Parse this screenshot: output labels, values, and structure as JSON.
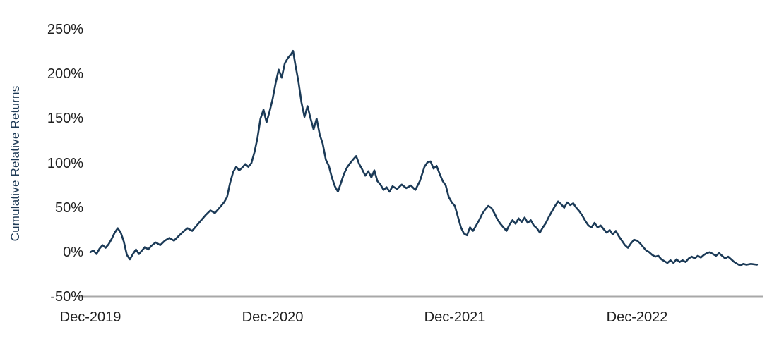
{
  "chart_data": {
    "type": "line",
    "title": "",
    "xlabel": "",
    "ylabel": "Cumulative Relative Returns",
    "x_unit": "months since Dec-2019",
    "xlim": [
      0,
      44
    ],
    "ylim": [
      -50,
      250
    ],
    "grid": false,
    "legend_position": "none",
    "line_color": "#1b3a57",
    "axis_color": "#a8a8a8",
    "tick_text_color": "#1f1f1f",
    "y_ticks": [
      {
        "value": 250,
        "label": "250%"
      },
      {
        "value": 200,
        "label": "200%"
      },
      {
        "value": 150,
        "label": "150%"
      },
      {
        "value": 100,
        "label": "100%"
      },
      {
        "value": 50,
        "label": "50%"
      },
      {
        "value": 0,
        "label": "0%"
      },
      {
        "value": -50,
        "label": "-50%"
      }
    ],
    "x_ticks": [
      {
        "month": 0,
        "label": "Dec-2019"
      },
      {
        "month": 12,
        "label": "Dec-2020"
      },
      {
        "month": 24,
        "label": "Dec-2021"
      },
      {
        "month": 36,
        "label": "Dec-2022"
      }
    ],
    "series": [
      {
        "name": "Cumulative Relative Returns",
        "points": [
          [
            0,
            0
          ],
          [
            0.2,
            2
          ],
          [
            0.4,
            -2
          ],
          [
            0.6,
            4
          ],
          [
            0.8,
            8
          ],
          [
            1.0,
            5
          ],
          [
            1.2,
            9
          ],
          [
            1.4,
            15
          ],
          [
            1.6,
            22
          ],
          [
            1.8,
            27
          ],
          [
            2.0,
            22
          ],
          [
            2.2,
            12
          ],
          [
            2.4,
            -3
          ],
          [
            2.6,
            -8
          ],
          [
            2.8,
            -2
          ],
          [
            3.0,
            3
          ],
          [
            3.2,
            -2
          ],
          [
            3.4,
            2
          ],
          [
            3.6,
            6
          ],
          [
            3.8,
            3
          ],
          [
            4.0,
            7
          ],
          [
            4.3,
            11
          ],
          [
            4.6,
            8
          ],
          [
            4.9,
            13
          ],
          [
            5.2,
            16
          ],
          [
            5.5,
            13
          ],
          [
            5.8,
            18
          ],
          [
            6.1,
            23
          ],
          [
            6.4,
            27
          ],
          [
            6.7,
            24
          ],
          [
            7.0,
            30
          ],
          [
            7.3,
            36
          ],
          [
            7.6,
            42
          ],
          [
            7.9,
            47
          ],
          [
            8.2,
            44
          ],
          [
            8.5,
            50
          ],
          [
            8.8,
            56
          ],
          [
            9.0,
            62
          ],
          [
            9.2,
            78
          ],
          [
            9.4,
            90
          ],
          [
            9.6,
            96
          ],
          [
            9.8,
            92
          ],
          [
            10.0,
            95
          ],
          [
            10.2,
            99
          ],
          [
            10.4,
            96
          ],
          [
            10.6,
            100
          ],
          [
            10.8,
            112
          ],
          [
            11.0,
            128
          ],
          [
            11.2,
            150
          ],
          [
            11.4,
            160
          ],
          [
            11.6,
            146
          ],
          [
            11.8,
            158
          ],
          [
            12.0,
            172
          ],
          [
            12.2,
            190
          ],
          [
            12.4,
            205
          ],
          [
            12.6,
            196
          ],
          [
            12.8,
            212
          ],
          [
            13.0,
            218
          ],
          [
            13.2,
            222
          ],
          [
            13.35,
            226
          ],
          [
            13.5,
            210
          ],
          [
            13.7,
            192
          ],
          [
            13.9,
            168
          ],
          [
            14.1,
            152
          ],
          [
            14.3,
            164
          ],
          [
            14.5,
            150
          ],
          [
            14.7,
            138
          ],
          [
            14.9,
            150
          ],
          [
            15.1,
            132
          ],
          [
            15.3,
            122
          ],
          [
            15.5,
            104
          ],
          [
            15.7,
            97
          ],
          [
            15.9,
            84
          ],
          [
            16.1,
            74
          ],
          [
            16.3,
            68
          ],
          [
            16.5,
            78
          ],
          [
            16.7,
            88
          ],
          [
            16.9,
            95
          ],
          [
            17.1,
            100
          ],
          [
            17.3,
            104
          ],
          [
            17.5,
            108
          ],
          [
            17.7,
            99
          ],
          [
            17.9,
            93
          ],
          [
            18.1,
            86
          ],
          [
            18.3,
            91
          ],
          [
            18.5,
            84
          ],
          [
            18.7,
            92
          ],
          [
            18.9,
            80
          ],
          [
            19.1,
            76
          ],
          [
            19.3,
            70
          ],
          [
            19.5,
            73
          ],
          [
            19.7,
            68
          ],
          [
            19.9,
            74
          ],
          [
            20.2,
            71
          ],
          [
            20.5,
            76
          ],
          [
            20.8,
            72
          ],
          [
            21.1,
            75
          ],
          [
            21.4,
            70
          ],
          [
            21.7,
            80
          ],
          [
            22.0,
            96
          ],
          [
            22.2,
            101
          ],
          [
            22.4,
            102
          ],
          [
            22.6,
            94
          ],
          [
            22.8,
            97
          ],
          [
            23.0,
            88
          ],
          [
            23.2,
            80
          ],
          [
            23.4,
            75
          ],
          [
            23.6,
            62
          ],
          [
            23.8,
            56
          ],
          [
            24.0,
            52
          ],
          [
            24.2,
            40
          ],
          [
            24.4,
            28
          ],
          [
            24.6,
            21
          ],
          [
            24.8,
            19
          ],
          [
            25.0,
            28
          ],
          [
            25.2,
            24
          ],
          [
            25.4,
            30
          ],
          [
            25.6,
            36
          ],
          [
            25.8,
            43
          ],
          [
            26.0,
            48
          ],
          [
            26.2,
            52
          ],
          [
            26.4,
            50
          ],
          [
            26.6,
            44
          ],
          [
            26.8,
            37
          ],
          [
            27.0,
            32
          ],
          [
            27.2,
            28
          ],
          [
            27.4,
            24
          ],
          [
            27.6,
            31
          ],
          [
            27.8,
            36
          ],
          [
            28.0,
            32
          ],
          [
            28.2,
            38
          ],
          [
            28.4,
            34
          ],
          [
            28.6,
            39
          ],
          [
            28.8,
            33
          ],
          [
            29.0,
            36
          ],
          [
            29.2,
            30
          ],
          [
            29.4,
            27
          ],
          [
            29.6,
            22
          ],
          [
            29.8,
            28
          ],
          [
            30.0,
            33
          ],
          [
            30.2,
            40
          ],
          [
            30.4,
            46
          ],
          [
            30.6,
            52
          ],
          [
            30.8,
            57
          ],
          [
            31.0,
            54
          ],
          [
            31.2,
            50
          ],
          [
            31.4,
            56
          ],
          [
            31.6,
            53
          ],
          [
            31.8,
            55
          ],
          [
            32.0,
            50
          ],
          [
            32.2,
            46
          ],
          [
            32.4,
            41
          ],
          [
            32.6,
            35
          ],
          [
            32.8,
            30
          ],
          [
            33.0,
            28
          ],
          [
            33.2,
            33
          ],
          [
            33.4,
            28
          ],
          [
            33.6,
            30
          ],
          [
            33.8,
            26
          ],
          [
            34.0,
            22
          ],
          [
            34.2,
            25
          ],
          [
            34.4,
            20
          ],
          [
            34.6,
            24
          ],
          [
            34.8,
            18
          ],
          [
            35.0,
            13
          ],
          [
            35.2,
            8
          ],
          [
            35.4,
            5
          ],
          [
            35.6,
            10
          ],
          [
            35.8,
            14
          ],
          [
            36.0,
            13
          ],
          [
            36.2,
            10
          ],
          [
            36.4,
            6
          ],
          [
            36.6,
            2
          ],
          [
            36.8,
            0
          ],
          [
            37.0,
            -3
          ],
          [
            37.2,
            -5
          ],
          [
            37.4,
            -4
          ],
          [
            37.6,
            -8
          ],
          [
            37.8,
            -10
          ],
          [
            38.0,
            -12
          ],
          [
            38.2,
            -9
          ],
          [
            38.4,
            -12
          ],
          [
            38.6,
            -8
          ],
          [
            38.8,
            -11
          ],
          [
            39.0,
            -9
          ],
          [
            39.2,
            -11
          ],
          [
            39.4,
            -7
          ],
          [
            39.6,
            -5
          ],
          [
            39.8,
            -7
          ],
          [
            40.0,
            -4
          ],
          [
            40.2,
            -6
          ],
          [
            40.4,
            -3
          ],
          [
            40.6,
            -1
          ],
          [
            40.8,
            0
          ],
          [
            41.0,
            -2
          ],
          [
            41.2,
            -4
          ],
          [
            41.4,
            -1
          ],
          [
            41.6,
            -4
          ],
          [
            41.8,
            -7
          ],
          [
            42.0,
            -5
          ],
          [
            42.2,
            -8
          ],
          [
            42.4,
            -11
          ],
          [
            42.6,
            -13
          ],
          [
            42.8,
            -15
          ],
          [
            43.0,
            -13
          ],
          [
            43.2,
            -14
          ],
          [
            43.5,
            -13
          ],
          [
            43.9,
            -14
          ]
        ]
      }
    ]
  }
}
